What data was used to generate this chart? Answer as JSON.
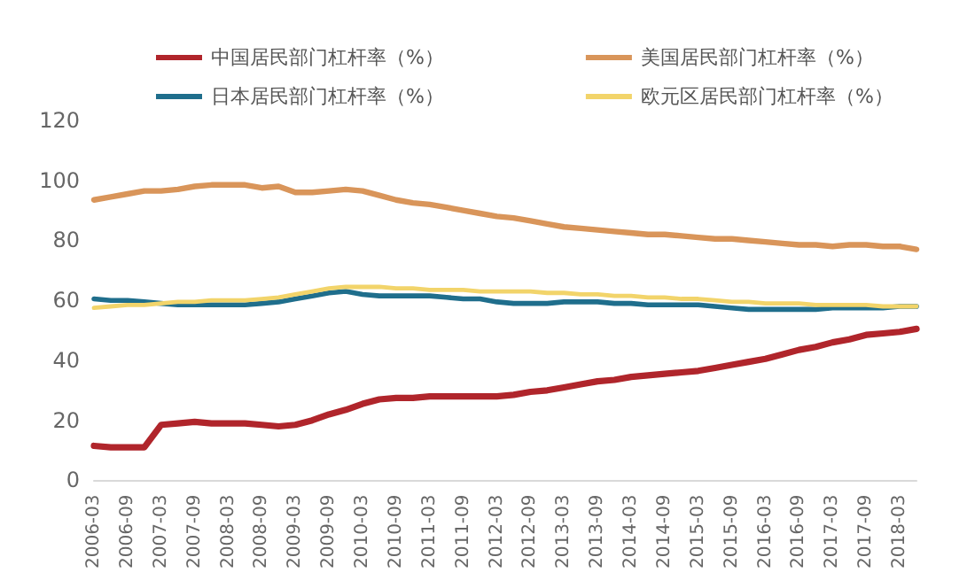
{
  "chart_data": {
    "type": "line",
    "categories": [
      "2006-03",
      null,
      "2006-09",
      null,
      "2007-03",
      null,
      "2007-09",
      null,
      "2008-03",
      null,
      "2008-09",
      null,
      "2009-03",
      null,
      "2009-09",
      null,
      "2010-03",
      null,
      "2010-09",
      null,
      "2011-03",
      null,
      "2011-09",
      null,
      "2012-03",
      null,
      "2012-09",
      null,
      "2013-03",
      null,
      "2013-09",
      null,
      "2014-03",
      null,
      "2014-09",
      null,
      "2015-03",
      null,
      "2015-09",
      null,
      "2016-03",
      null,
      "2016-09",
      null,
      "2017-03",
      null,
      "2017-09",
      null,
      "2018-03",
      null
    ],
    "series": [
      {
        "name": "中国居民部门杠杆率（%）",
        "color": "#b0252b",
        "values": [
          11.5,
          11,
          11,
          11,
          18.5,
          19,
          19.5,
          19,
          19,
          19,
          18.5,
          18,
          18.5,
          20,
          22,
          23.5,
          25.5,
          27,
          27.5,
          27.5,
          28,
          28,
          28,
          28,
          28,
          28.5,
          29.5,
          30,
          31,
          32,
          33,
          33.5,
          34.5,
          35,
          35.5,
          36,
          36.5,
          37.5,
          38.5,
          39.5,
          40.5,
          42,
          43.5,
          44.5,
          46,
          47,
          48.5,
          49,
          49.5,
          50.5
        ]
      },
      {
        "name": "美国居民部门杠杆率（%）",
        "color": "#d9955a",
        "values": [
          93.5,
          94.5,
          95.5,
          96.5,
          96.5,
          97,
          98,
          98.5,
          98.5,
          98.5,
          97.5,
          98,
          96,
          96,
          96.5,
          97,
          96.5,
          95,
          93.5,
          92.5,
          92,
          91,
          90,
          89,
          88,
          87.5,
          86.5,
          85.5,
          84.5,
          84,
          83.5,
          83,
          82.5,
          82,
          82,
          81.5,
          81,
          80.5,
          80.5,
          80,
          79.5,
          79,
          78.5,
          78.5,
          78,
          78.5,
          78.5,
          78,
          78,
          77
        ]
      },
      {
        "name": "日本居民部门杠杆率（%）",
        "color": "#1f6e8c",
        "values": [
          60.5,
          60,
          60,
          59.5,
          59,
          58.5,
          58.5,
          58.5,
          58.5,
          58.5,
          59,
          59.5,
          60.5,
          61.5,
          62.5,
          63,
          62,
          61.5,
          61.5,
          61.5,
          61.5,
          61,
          60.5,
          60.5,
          59.5,
          59,
          59,
          59,
          59.5,
          59.5,
          59.5,
          59,
          59,
          58.5,
          58.5,
          58.5,
          58.5,
          58,
          57.5,
          57,
          57,
          57,
          57,
          57,
          57.5,
          57.5,
          57.5,
          57.5,
          58,
          58
        ]
      },
      {
        "name": "欧元区居民部门杠杆率（%）",
        "color": "#f2d46a",
        "values": [
          57.5,
          58,
          58.5,
          58.5,
          59,
          59.5,
          59.5,
          60,
          60,
          60,
          60.5,
          61,
          62,
          63,
          64,
          64.5,
          64.5,
          64.5,
          64,
          64,
          63.5,
          63.5,
          63.5,
          63,
          63,
          63,
          63,
          62.5,
          62.5,
          62,
          62,
          61.5,
          61.5,
          61,
          61,
          60.5,
          60.5,
          60,
          59.5,
          59.5,
          59,
          59,
          59,
          58.5,
          58.5,
          58.5,
          58.5,
          58,
          58,
          58
        ]
      }
    ],
    "ylim": [
      0,
      120
    ],
    "yticks": [
      0,
      20,
      40,
      60,
      80,
      100,
      120
    ],
    "grid": false,
    "legend": "top",
    "marker": "none",
    "line_style": "solid"
  }
}
